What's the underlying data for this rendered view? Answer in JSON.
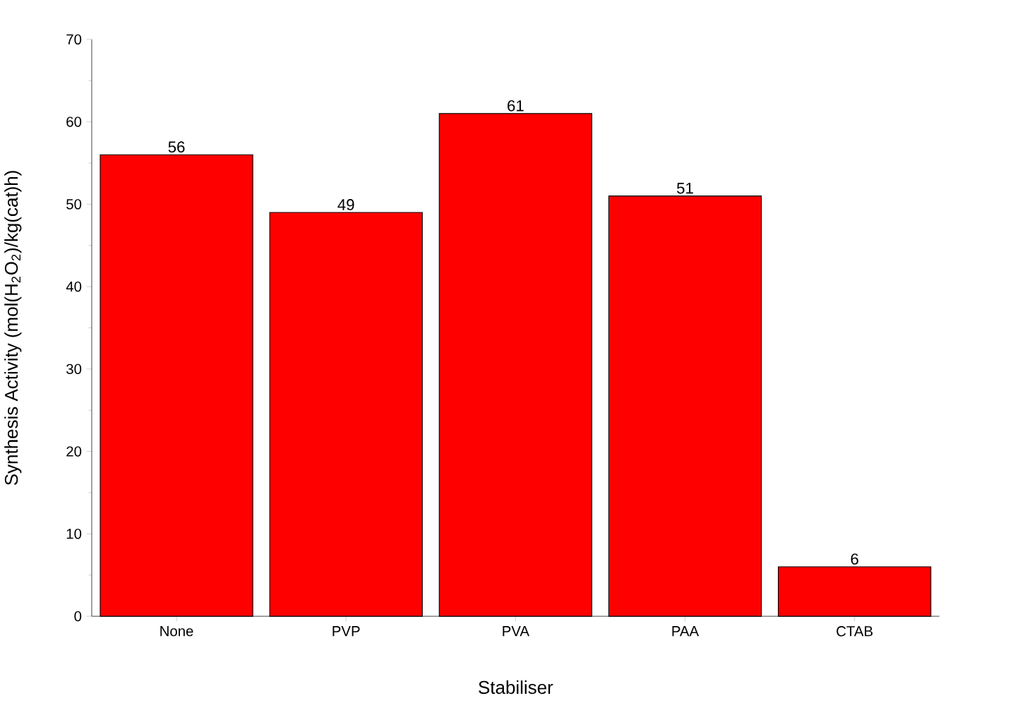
{
  "chart_data": {
    "type": "bar",
    "xlabel": "Stabiliser",
    "ylabel": "Synthesis Activity (mol(H$_{2}$O$_{2}$)/kg(cat)h)",
    "categories": [
      "None",
      "PVP",
      "PVA",
      "PAA",
      "CTAB"
    ],
    "values": [
      56,
      49,
      61,
      51,
      6
    ],
    "color": "#ff0000",
    "ylim": [
      0,
      70
    ],
    "yticks": [
      0,
      10,
      20,
      30,
      40,
      50,
      60,
      70
    ],
    "data_labels": true
  }
}
